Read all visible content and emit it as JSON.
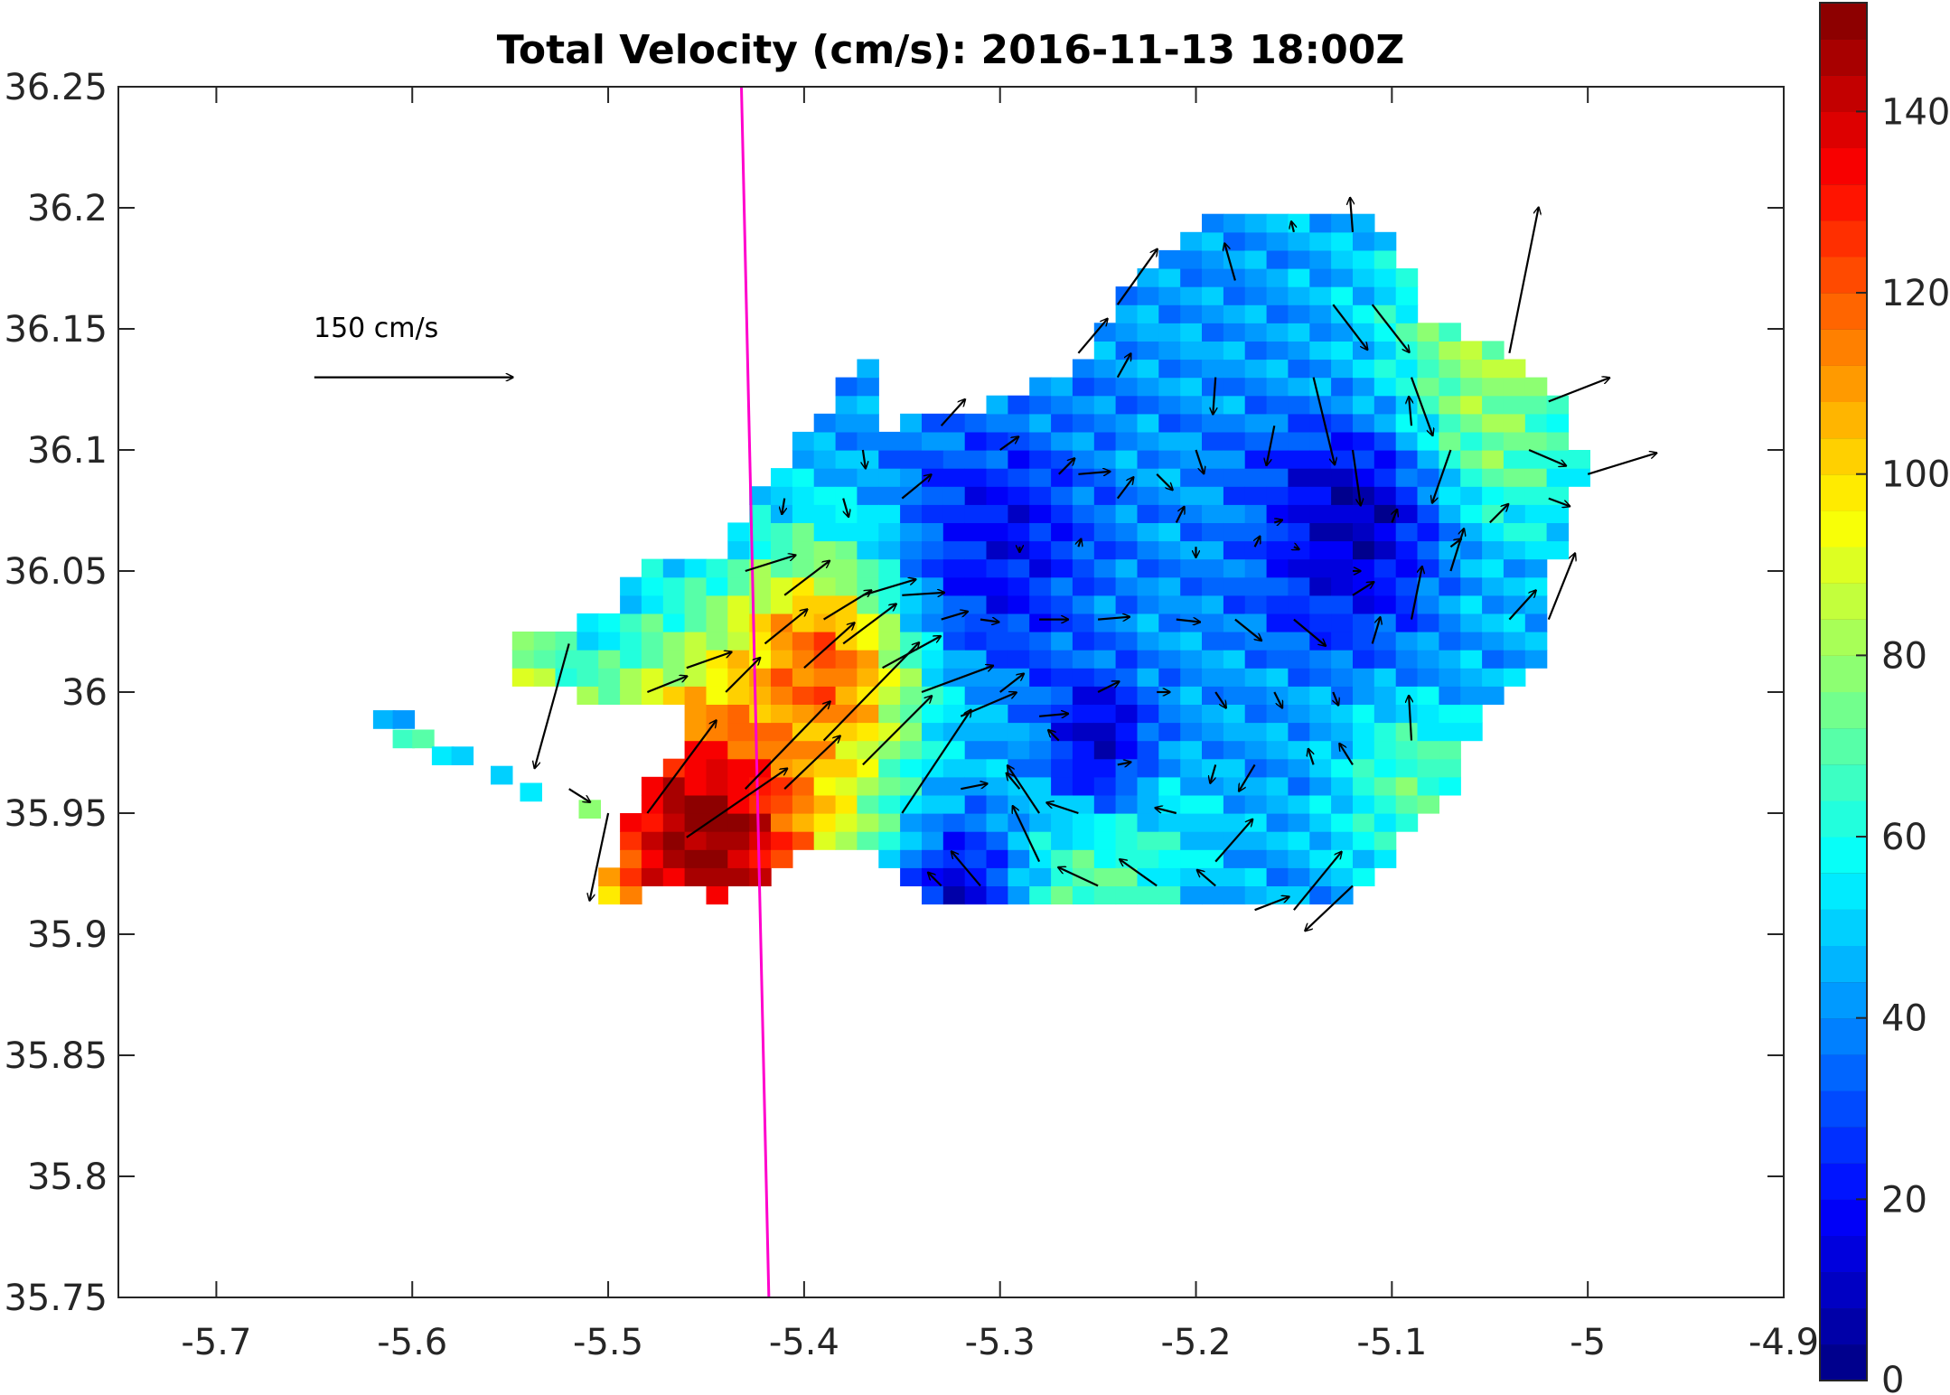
{
  "chart_data": {
    "type": "heatmap",
    "title": "Total Velocity (cm/s): 2016-11-13 18:00Z",
    "xlabel": "",
    "ylabel": "",
    "xlim": [
      -5.75,
      -4.9
    ],
    "ylim": [
      35.75,
      36.25
    ],
    "x_ticks": [
      "-5.7",
      "-5.6",
      "-5.5",
      "-5.4",
      "-5.3",
      "-5.2",
      "-5.1",
      "-5",
      "-4.9"
    ],
    "x_tick_values": [
      -5.7,
      -5.6,
      -5.5,
      -5.4,
      -5.3,
      -5.2,
      -5.1,
      -5.0,
      -4.9
    ],
    "y_ticks": [
      "35.75",
      "35.8",
      "35.85",
      "35.9",
      "35.95",
      "36",
      "36.05",
      "36.1",
      "36.15",
      "36.2",
      "36.25"
    ],
    "y_tick_values": [
      35.75,
      35.8,
      35.85,
      35.9,
      35.95,
      36.0,
      36.05,
      36.1,
      36.15,
      36.2,
      36.25
    ],
    "grid": false,
    "colorbar": {
      "label": "",
      "range": [
        0,
        152
      ],
      "ticks": [
        "0",
        "20",
        "40",
        "60",
        "80",
        "100",
        "120",
        "140"
      ],
      "tick_values": [
        0,
        20,
        40,
        60,
        80,
        100,
        120,
        140
      ],
      "colormap": "jet"
    },
    "reference_vector": {
      "label": "150 cm/s",
      "speed": 150,
      "lon": -5.65,
      "lat": 36.13
    },
    "section_line": {
      "color": "#ff00cc",
      "points": [
        [
          -5.432,
          36.25
        ],
        [
          -5.418,
          35.75
        ]
      ]
    },
    "field": {
      "base_speed": 42,
      "hotspots": [
        {
          "lon": -5.45,
          "lat": 35.94,
          "speed": 155,
          "radius": 0.07
        },
        {
          "lon": -5.39,
          "lat": 36.01,
          "speed": 120,
          "radius": 0.05
        },
        {
          "lon": -5.55,
          "lat": 36.01,
          "speed": 85,
          "radius": 0.03
        },
        {
          "lon": -5.06,
          "lat": 36.12,
          "speed": 85,
          "radius": 0.06
        },
        {
          "lon": -5.25,
          "lat": 35.93,
          "speed": 72,
          "radius": 0.05
        },
        {
          "lon": -5.09,
          "lat": 35.96,
          "speed": 70,
          "radius": 0.04
        },
        {
          "lon": -5.12,
          "lat": 36.07,
          "speed": 8,
          "radius": 0.05
        },
        {
          "lon": -5.25,
          "lat": 35.98,
          "speed": 10,
          "radius": 0.03
        },
        {
          "lon": -5.32,
          "lat": 35.92,
          "speed": 15,
          "radius": 0.03
        },
        {
          "lon": -5.3,
          "lat": 36.06,
          "speed": 18,
          "radius": 0.05
        }
      ]
    },
    "vectors": [
      {
        "lon": -5.52,
        "lat": 36.02,
        "u": -26,
        "v": -94
      },
      {
        "lon": -5.5,
        "lat": 35.95,
        "u": -14,
        "v": -66
      },
      {
        "lon": -5.52,
        "lat": 35.96,
        "u": 16,
        "v": -10
      },
      {
        "lon": -5.48,
        "lat": 35.95,
        "u": 52,
        "v": 70
      },
      {
        "lon": -5.46,
        "lat": 35.94,
        "u": 76,
        "v": 52
      },
      {
        "lon": -5.43,
        "lat": 35.96,
        "u": 64,
        "v": 66
      },
      {
        "lon": -5.41,
        "lat": 35.96,
        "u": 42,
        "v": 40
      },
      {
        "lon": -5.39,
        "lat": 35.98,
        "u": 72,
        "v": 74
      },
      {
        "lon": -5.37,
        "lat": 35.97,
        "u": 52,
        "v": 52
      },
      {
        "lon": -5.35,
        "lat": 35.95,
        "u": 52,
        "v": 78
      },
      {
        "lon": -5.48,
        "lat": 36.0,
        "u": 30,
        "v": 12
      },
      {
        "lon": -5.46,
        "lat": 36.01,
        "u": 34,
        "v": 12
      },
      {
        "lon": -5.44,
        "lat": 36.0,
        "u": 26,
        "v": 26
      },
      {
        "lon": -5.42,
        "lat": 36.02,
        "u": 32,
        "v": 26
      },
      {
        "lon": -5.4,
        "lat": 36.01,
        "u": 38,
        "v": 34
      },
      {
        "lon": -5.38,
        "lat": 36.02,
        "u": 40,
        "v": 30
      },
      {
        "lon": -5.36,
        "lat": 36.01,
        "u": 44,
        "v": 24
      },
      {
        "lon": -5.34,
        "lat": 36.0,
        "u": 54,
        "v": 20
      },
      {
        "lon": -5.32,
        "lat": 35.99,
        "u": 42,
        "v": 18
      },
      {
        "lon": -5.3,
        "lat": 36.0,
        "u": 18,
        "v": 14
      },
      {
        "lon": -5.43,
        "lat": 36.05,
        "u": 38,
        "v": 12
      },
      {
        "lon": -5.41,
        "lat": 36.04,
        "u": 34,
        "v": 26
      },
      {
        "lon": -5.39,
        "lat": 36.03,
        "u": 36,
        "v": 22
      },
      {
        "lon": -5.37,
        "lat": 36.04,
        "u": 40,
        "v": 12
      },
      {
        "lon": -5.35,
        "lat": 36.04,
        "u": 32,
        "v": 2
      },
      {
        "lon": -5.33,
        "lat": 36.03,
        "u": 20,
        "v": 6
      },
      {
        "lon": -5.31,
        "lat": 36.03,
        "u": 14,
        "v": -2
      },
      {
        "lon": -5.28,
        "lat": 36.03,
        "u": 22,
        "v": 0
      },
      {
        "lon": -5.25,
        "lat": 36.03,
        "u": 24,
        "v": 2
      },
      {
        "lon": -5.21,
        "lat": 36.03,
        "u": 18,
        "v": -2
      },
      {
        "lon": -5.18,
        "lat": 36.03,
        "u": 20,
        "v": -16
      },
      {
        "lon": -5.15,
        "lat": 36.03,
        "u": 24,
        "v": -20
      },
      {
        "lon": -5.12,
        "lat": 36.04,
        "u": 16,
        "v": 10
      },
      {
        "lon": -5.11,
        "lat": 36.02,
        "u": 6,
        "v": 20
      },
      {
        "lon": -5.09,
        "lat": 36.03,
        "u": 8,
        "v": 40
      },
      {
        "lon": -5.07,
        "lat": 36.05,
        "u": 10,
        "v": 32
      },
      {
        "lon": -5.04,
        "lat": 36.03,
        "u": 20,
        "v": 22
      },
      {
        "lon": -5.02,
        "lat": 36.03,
        "u": 20,
        "v": 50
      },
      {
        "lon": -5.1,
        "lat": 36.07,
        "u": 4,
        "v": 10
      },
      {
        "lon": -5.07,
        "lat": 36.06,
        "u": 8,
        "v": 6
      },
      {
        "lon": -5.05,
        "lat": 36.07,
        "u": 14,
        "v": 14
      },
      {
        "lon": -5.02,
        "lat": 36.08,
        "u": 16,
        "v": -6
      },
      {
        "lon": -5.03,
        "lat": 36.1,
        "u": 28,
        "v": -12
      },
      {
        "lon": -5.02,
        "lat": 36.12,
        "u": 46,
        "v": 18
      },
      {
        "lon": -5.0,
        "lat": 36.09,
        "u": 52,
        "v": 16
      },
      {
        "lon": -5.04,
        "lat": 36.14,
        "u": 22,
        "v": 110
      },
      {
        "lon": -5.07,
        "lat": 36.1,
        "u": -14,
        "v": -40
      },
      {
        "lon": -5.09,
        "lat": 36.13,
        "u": 16,
        "v": -44
      },
      {
        "lon": -5.11,
        "lat": 36.16,
        "u": 28,
        "v": -36
      },
      {
        "lon": -5.13,
        "lat": 36.16,
        "u": 26,
        "v": -34
      },
      {
        "lon": -5.14,
        "lat": 36.13,
        "u": 16,
        "v": -66
      },
      {
        "lon": -5.16,
        "lat": 36.11,
        "u": -6,
        "v": -30
      },
      {
        "lon": -5.12,
        "lat": 36.1,
        "u": 6,
        "v": -42
      },
      {
        "lon": -5.19,
        "lat": 36.13,
        "u": -2,
        "v": -28
      },
      {
        "lon": -5.2,
        "lat": 36.1,
        "u": 6,
        "v": -18
      },
      {
        "lon": -5.21,
        "lat": 36.07,
        "u": 6,
        "v": 12
      },
      {
        "lon": -5.24,
        "lat": 36.08,
        "u": 12,
        "v": 16
      },
      {
        "lon": -5.27,
        "lat": 36.09,
        "u": 12,
        "v": 12
      },
      {
        "lon": -5.3,
        "lat": 36.1,
        "u": 14,
        "v": 10
      },
      {
        "lon": -5.33,
        "lat": 36.11,
        "u": 18,
        "v": 20
      },
      {
        "lon": -5.26,
        "lat": 36.14,
        "u": 22,
        "v": 26
      },
      {
        "lon": -5.24,
        "lat": 36.16,
        "u": 30,
        "v": 42
      },
      {
        "lon": -5.18,
        "lat": 36.17,
        "u": -8,
        "v": 28
      },
      {
        "lon": -5.24,
        "lat": 36.13,
        "u": 10,
        "v": 18
      },
      {
        "lon": -5.35,
        "lat": 36.08,
        "u": 22,
        "v": 18
      },
      {
        "lon": -5.37,
        "lat": 36.1,
        "u": 2,
        "v": -14
      },
      {
        "lon": -5.38,
        "lat": 36.08,
        "u": 4,
        "v": -14
      },
      {
        "lon": -5.41,
        "lat": 36.08,
        "u": -2,
        "v": -12
      },
      {
        "lon": -5.26,
        "lat": 36.09,
        "u": 24,
        "v": 2
      },
      {
        "lon": -5.22,
        "lat": 36.09,
        "u": 12,
        "v": -12
      },
      {
        "lon": -5.16,
        "lat": 36.07,
        "u": 6,
        "v": 2
      },
      {
        "lon": -5.15,
        "lat": 36.19,
        "u": -2,
        "v": 8
      },
      {
        "lon": -5.12,
        "lat": 36.19,
        "u": -2,
        "v": 26
      },
      {
        "lon": -5.09,
        "lat": 36.11,
        "u": -2,
        "v": 22
      },
      {
        "lon": -5.12,
        "lat": 36.05,
        "u": 6,
        "v": 0
      },
      {
        "lon": -5.29,
        "lat": 36.06,
        "u": 0,
        "v": -4
      },
      {
        "lon": -5.26,
        "lat": 36.06,
        "u": 2,
        "v": 6
      },
      {
        "lon": -5.2,
        "lat": 36.06,
        "u": 0,
        "v": -8
      },
      {
        "lon": -5.17,
        "lat": 36.06,
        "u": 4,
        "v": 8
      },
      {
        "lon": -5.15,
        "lat": 36.06,
        "u": 4,
        "v": -2
      },
      {
        "lon": -5.28,
        "lat": 35.99,
        "u": 22,
        "v": 2
      },
      {
        "lon": -5.25,
        "lat": 36.0,
        "u": 16,
        "v": 8
      },
      {
        "lon": -5.22,
        "lat": 36.0,
        "u": 10,
        "v": 0
      },
      {
        "lon": -5.19,
        "lat": 36.0,
        "u": 8,
        "v": -12
      },
      {
        "lon": -5.16,
        "lat": 36.0,
        "u": 6,
        "v": -12
      },
      {
        "lon": -5.13,
        "lat": 36.0,
        "u": 4,
        "v": -10
      },
      {
        "lon": -5.27,
        "lat": 35.98,
        "u": -8,
        "v": 8
      },
      {
        "lon": -5.24,
        "lat": 35.97,
        "u": 10,
        "v": 2
      },
      {
        "lon": -5.19,
        "lat": 35.97,
        "u": -4,
        "v": -14
      },
      {
        "lon": -5.17,
        "lat": 35.97,
        "u": -12,
        "v": -20
      },
      {
        "lon": -5.14,
        "lat": 35.97,
        "u": -4,
        "v": 12
      },
      {
        "lon": -5.12,
        "lat": 35.97,
        "u": -10,
        "v": 16
      },
      {
        "lon": -5.09,
        "lat": 35.98,
        "u": -2,
        "v": 34
      },
      {
        "lon": -5.32,
        "lat": 35.96,
        "u": 20,
        "v": 4
      },
      {
        "lon": -5.29,
        "lat": 35.96,
        "u": -10,
        "v": 12
      },
      {
        "lon": -5.26,
        "lat": 35.95,
        "u": -24,
        "v": 8
      },
      {
        "lon": -5.21,
        "lat": 35.95,
        "u": -16,
        "v": 4
      },
      {
        "lon": -5.19,
        "lat": 35.93,
        "u": 28,
        "v": 32
      },
      {
        "lon": -5.31,
        "lat": 35.92,
        "u": -22,
        "v": 26
      },
      {
        "lon": -5.28,
        "lat": 35.93,
        "u": -20,
        "v": 42
      },
      {
        "lon": -5.25,
        "lat": 35.92,
        "u": -30,
        "v": 14
      },
      {
        "lon": -5.22,
        "lat": 35.92,
        "u": -28,
        "v": 20
      },
      {
        "lon": -5.19,
        "lat": 35.92,
        "u": -14,
        "v": 12
      },
      {
        "lon": -5.28,
        "lat": 35.95,
        "u": -24,
        "v": 36
      },
      {
        "lon": -5.17,
        "lat": 35.91,
        "u": 26,
        "v": 10
      },
      {
        "lon": -5.15,
        "lat": 35.91,
        "u": 36,
        "v": 44
      },
      {
        "lon": -5.12,
        "lat": 35.92,
        "u": -36,
        "v": -34
      },
      {
        "lon": -5.33,
        "lat": 35.92,
        "u": -10,
        "v": 10
      }
    ]
  }
}
